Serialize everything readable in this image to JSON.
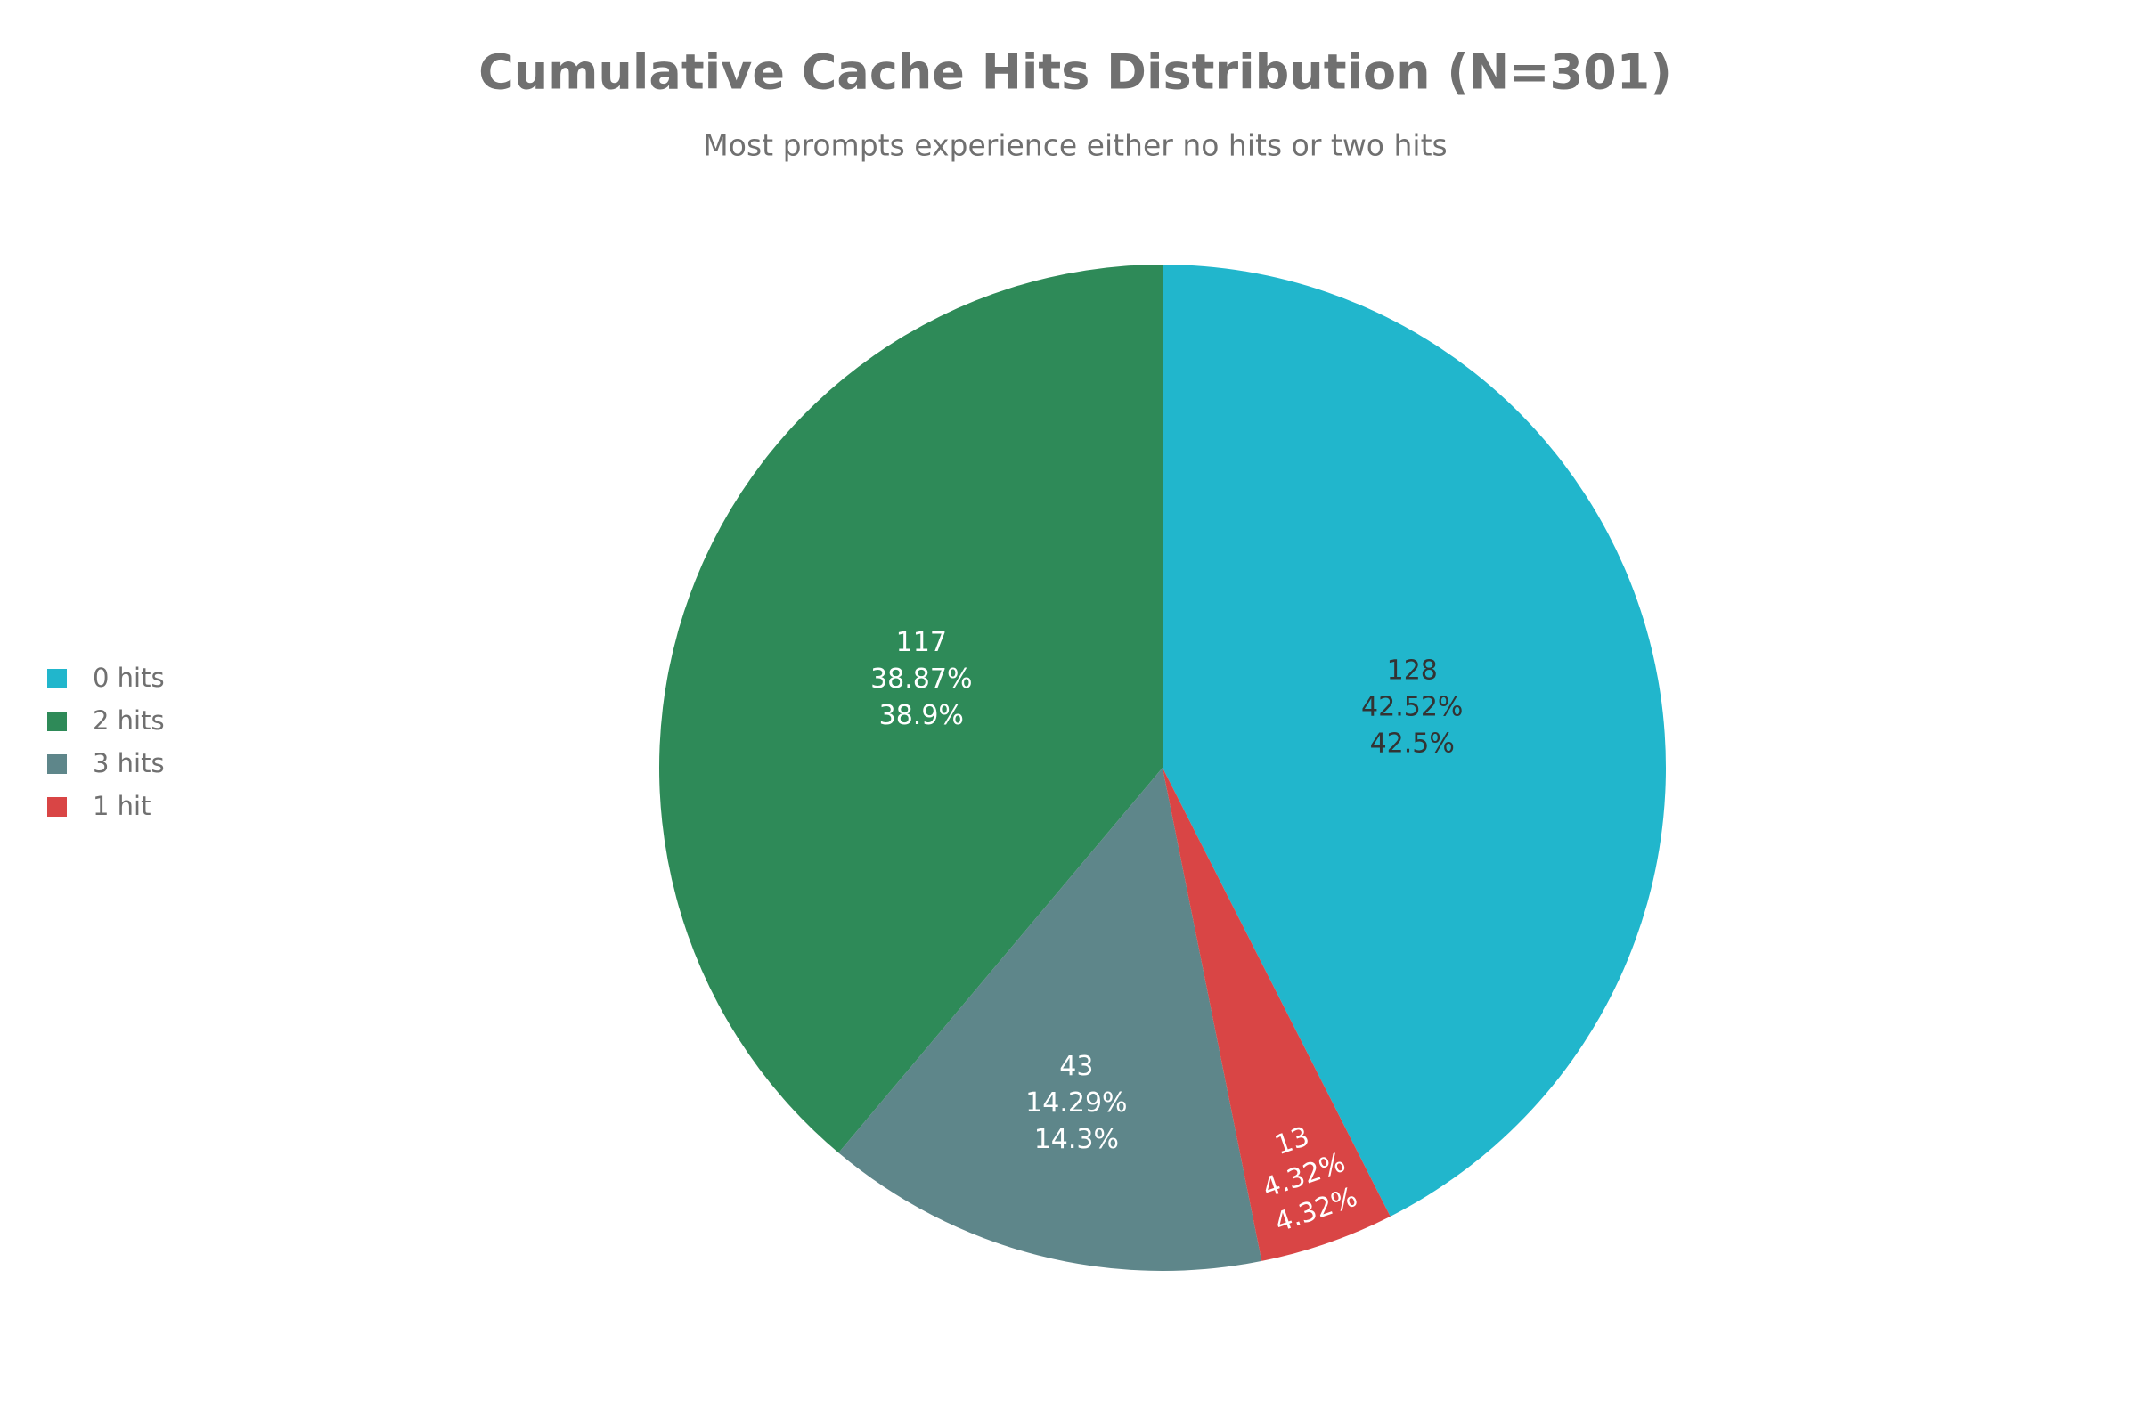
{
  "chart_data": {
    "type": "pie",
    "title": "Cumulative Cache Hits Distribution (N=301)",
    "subtitle": "Most prompts experience either no hits or two hits",
    "categories": [
      "0 hits",
      "2 hits",
      "3 hits",
      "1 hit"
    ],
    "values": [
      128,
      117,
      43,
      13
    ],
    "colors": [
      "#21b6cc",
      "#2e8a58",
      "#5e868a",
      "#d94545"
    ],
    "label_colors": [
      "#333333",
      "#ffffff",
      "#ffffff",
      "#ffffff"
    ],
    "percent_labels": [
      {
        "value": 42.52,
        "label": "42.52%"
      },
      {
        "value": 38.87,
        "label": "38.87%"
      },
      {
        "value": 14.29,
        "label": "14.29%"
      },
      {
        "value": 4.32,
        "label": "4.32%"
      }
    ],
    "rounded_percent_labels": [
      {
        "value": 42.5,
        "label": "42.5%"
      },
      {
        "value": 38.9,
        "label": "38.9%"
      },
      {
        "value": 14.3,
        "label": "14.3%"
      },
      {
        "value": 4.32,
        "label": "4.32%"
      }
    ],
    "legend": "left"
  }
}
